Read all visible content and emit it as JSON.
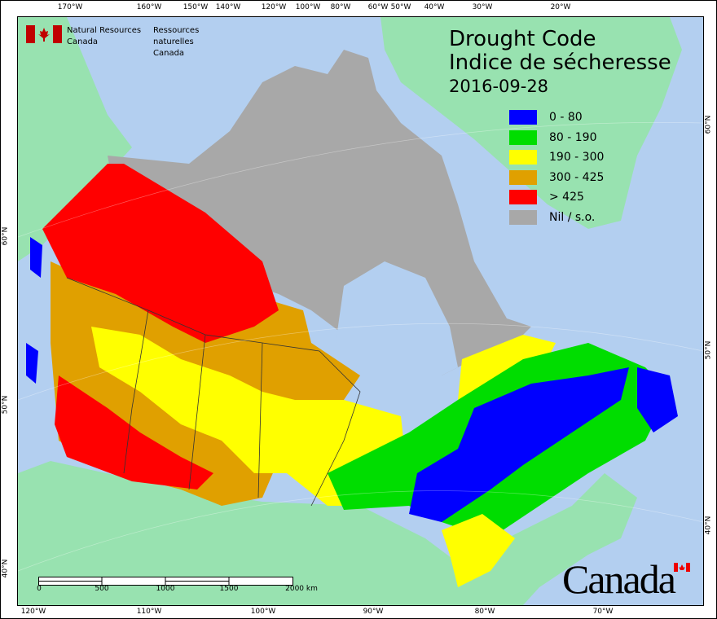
{
  "title": {
    "line1": "Drought Code",
    "line2": "Indice de sécheresse",
    "date": "2016-09-28"
  },
  "agency": {
    "en_line1": "Natural Resources",
    "en_line2": "Canada",
    "fr_line1": "Ressources naturelles",
    "fr_line2": "Canada",
    "logo": "canada-flag-icon"
  },
  "wordmark": "Canada",
  "legend": [
    {
      "label": "0 - 80",
      "color": "#0000ff"
    },
    {
      "label": "80 - 190",
      "color": "#00dd00"
    },
    {
      "label": "190 - 300",
      "color": "#ffff00"
    },
    {
      "label": "300 - 425",
      "color": "#e0a000"
    },
    {
      "label": "> 425",
      "color": "#ff0000"
    },
    {
      "label": "Nil / s.o.",
      "color": "#a8a8a8"
    }
  ],
  "top_ticks": [
    "170°W",
    "160°W",
    "150°W",
    "140°W",
    "120°W",
    "100°W",
    "80°W",
    "60°W",
    "50°W",
    "40°W",
    "30°W",
    "20°W"
  ],
  "bottom_ticks": [
    "120°W",
    "110°W",
    "100°W",
    "90°W",
    "80°W",
    "70°W"
  ],
  "left_ticks": [
    "60°N",
    "50°N",
    "40°N"
  ],
  "right_ticks": [
    "60°N",
    "50°N",
    "40°N"
  ],
  "scale_bar": {
    "labels": [
      "0",
      "500",
      "1000",
      "1500",
      "2000 km"
    ]
  },
  "colors": {
    "water": "#b3cff0",
    "other_land": "#98e2b0",
    "no_data": "#a8a8a8"
  }
}
